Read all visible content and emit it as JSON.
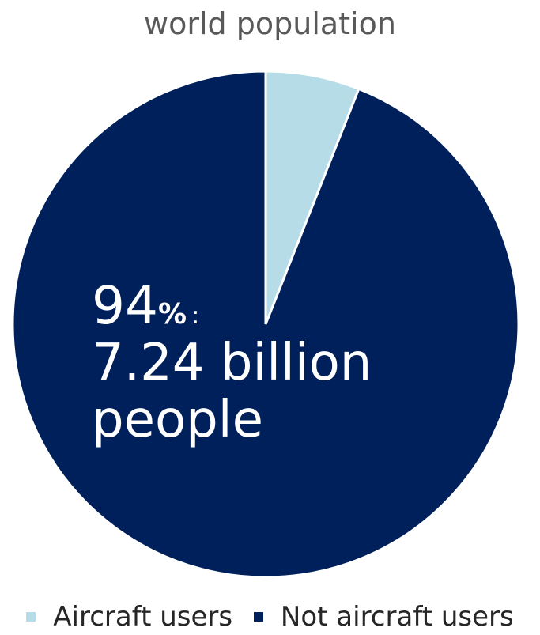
{
  "chart_data": {
    "type": "pie",
    "title": "world population",
    "slices": [
      {
        "name": "Aircraft users",
        "value": 6,
        "color": "#b6dce8"
      },
      {
        "name": "Not aircraft users",
        "value": 94,
        "color": "#00205b"
      }
    ],
    "annotation": {
      "percent_value": "94",
      "percent_symbol": "%",
      "separator": ":",
      "line2": "7.24 billion",
      "line3": "people"
    },
    "legend_position": "bottom"
  }
}
